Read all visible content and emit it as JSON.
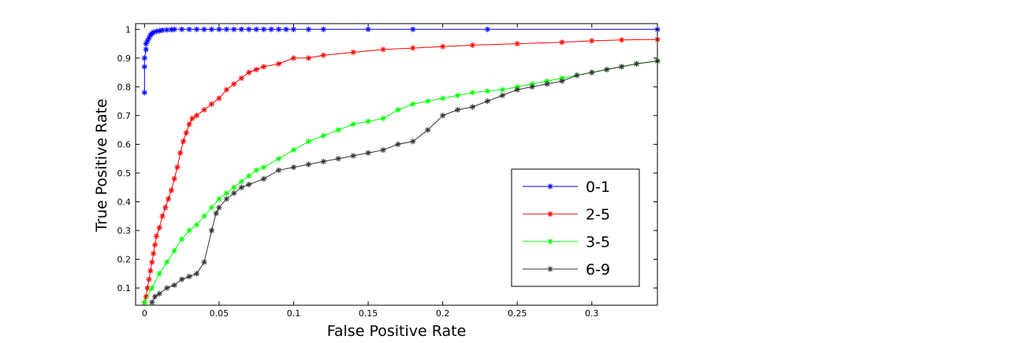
{
  "chart_data": {
    "type": "line",
    "title": "",
    "xlabel": "False Positive Rate",
    "ylabel": "True Positive Rate",
    "xlim": [
      -0.006,
      0.344
    ],
    "ylim": [
      0.04,
      1.02
    ],
    "xticks": [
      0,
      0.05,
      0.1,
      0.15,
      0.2,
      0.25,
      0.3
    ],
    "xtick_labels": [
      "0",
      "0.05",
      "0.1",
      "0.15",
      "0.2",
      "0.25",
      "0.3"
    ],
    "yticks": [
      0.1,
      0.2,
      0.3,
      0.4,
      0.5,
      0.6,
      0.7,
      0.8,
      0.9,
      1
    ],
    "ytick_labels": [
      "0.1",
      "0.2",
      "0.3",
      "0.4",
      "0.5",
      "0.6",
      "0.7",
      "0.8",
      "0.9",
      "1"
    ],
    "grid": false,
    "legend_position": "bottom-right",
    "marker": "asterisk",
    "series": [
      {
        "name": "0-1",
        "color": "#0000ff",
        "x": [
          0,
          0,
          0,
          0.001,
          0.001,
          0.002,
          0.003,
          0.004,
          0.005,
          0.006,
          0.008,
          0.01,
          0.012,
          0.015,
          0.018,
          0.02,
          0.025,
          0.03,
          0.035,
          0.04,
          0.045,
          0.05,
          0.055,
          0.06,
          0.065,
          0.07,
          0.075,
          0.08,
          0.085,
          0.09,
          0.095,
          0.1,
          0.11,
          0.12,
          0.15,
          0.18,
          0.23,
          0.344
        ],
        "y": [
          0.78,
          0.87,
          0.9,
          0.93,
          0.95,
          0.96,
          0.97,
          0.98,
          0.985,
          0.99,
          0.993,
          0.995,
          0.997,
          0.998,
          0.999,
          1,
          1,
          1,
          1,
          1,
          1,
          1,
          1,
          1,
          1,
          1,
          1,
          1,
          1,
          1,
          1,
          1,
          1,
          1,
          1,
          1,
          1,
          1
        ]
      },
      {
        "name": "2-5",
        "color": "#ff0000",
        "x": [
          0,
          0.001,
          0.002,
          0.003,
          0.004,
          0.005,
          0.006,
          0.007,
          0.008,
          0.01,
          0.012,
          0.014,
          0.016,
          0.018,
          0.02,
          0.022,
          0.024,
          0.026,
          0.028,
          0.03,
          0.032,
          0.035,
          0.04,
          0.045,
          0.05,
          0.055,
          0.06,
          0.065,
          0.07,
          0.075,
          0.08,
          0.09,
          0.1,
          0.11,
          0.12,
          0.14,
          0.16,
          0.18,
          0.2,
          0.22,
          0.25,
          0.28,
          0.3,
          0.32,
          0.344
        ],
        "y": [
          0.05,
          0.07,
          0.1,
          0.13,
          0.16,
          0.19,
          0.22,
          0.25,
          0.28,
          0.31,
          0.35,
          0.38,
          0.41,
          0.44,
          0.48,
          0.52,
          0.57,
          0.61,
          0.64,
          0.67,
          0.69,
          0.7,
          0.72,
          0.74,
          0.76,
          0.79,
          0.81,
          0.83,
          0.85,
          0.86,
          0.87,
          0.88,
          0.9,
          0.9,
          0.91,
          0.92,
          0.93,
          0.935,
          0.94,
          0.945,
          0.95,
          0.955,
          0.96,
          0.963,
          0.965
        ]
      },
      {
        "name": "3-5",
        "color": "#00ff00",
        "x": [
          0,
          0.005,
          0.01,
          0.015,
          0.02,
          0.025,
          0.03,
          0.035,
          0.04,
          0.045,
          0.05,
          0.055,
          0.06,
          0.065,
          0.07,
          0.075,
          0.08,
          0.09,
          0.1,
          0.11,
          0.12,
          0.13,
          0.14,
          0.15,
          0.16,
          0.17,
          0.18,
          0.19,
          0.2,
          0.21,
          0.22,
          0.23,
          0.24,
          0.25,
          0.26,
          0.27,
          0.28,
          0.29,
          0.3,
          0.31,
          0.32,
          0.33,
          0.344
        ],
        "y": [
          0.05,
          0.1,
          0.15,
          0.19,
          0.23,
          0.27,
          0.3,
          0.32,
          0.35,
          0.38,
          0.41,
          0.43,
          0.45,
          0.47,
          0.49,
          0.51,
          0.52,
          0.55,
          0.58,
          0.61,
          0.63,
          0.65,
          0.67,
          0.68,
          0.69,
          0.72,
          0.74,
          0.75,
          0.76,
          0.77,
          0.78,
          0.785,
          0.79,
          0.8,
          0.81,
          0.82,
          0.83,
          0.84,
          0.85,
          0.86,
          0.87,
          0.88,
          0.89
        ]
      },
      {
        "name": "6-9",
        "color": "#333333",
        "x": [
          0.005,
          0.007,
          0.01,
          0.015,
          0.02,
          0.025,
          0.03,
          0.035,
          0.04,
          0.045,
          0.048,
          0.05,
          0.055,
          0.06,
          0.065,
          0.07,
          0.08,
          0.09,
          0.1,
          0.11,
          0.12,
          0.13,
          0.14,
          0.15,
          0.16,
          0.17,
          0.18,
          0.19,
          0.2,
          0.21,
          0.22,
          0.23,
          0.24,
          0.25,
          0.26,
          0.27,
          0.28,
          0.29,
          0.3,
          0.31,
          0.32,
          0.33,
          0.344
        ],
        "y": [
          0.05,
          0.07,
          0.08,
          0.1,
          0.11,
          0.13,
          0.14,
          0.15,
          0.19,
          0.3,
          0.36,
          0.38,
          0.41,
          0.43,
          0.45,
          0.46,
          0.48,
          0.51,
          0.52,
          0.53,
          0.54,
          0.55,
          0.56,
          0.57,
          0.58,
          0.6,
          0.61,
          0.65,
          0.7,
          0.72,
          0.73,
          0.75,
          0.77,
          0.79,
          0.8,
          0.81,
          0.82,
          0.84,
          0.85,
          0.86,
          0.87,
          0.88,
          0.89
        ]
      }
    ]
  }
}
